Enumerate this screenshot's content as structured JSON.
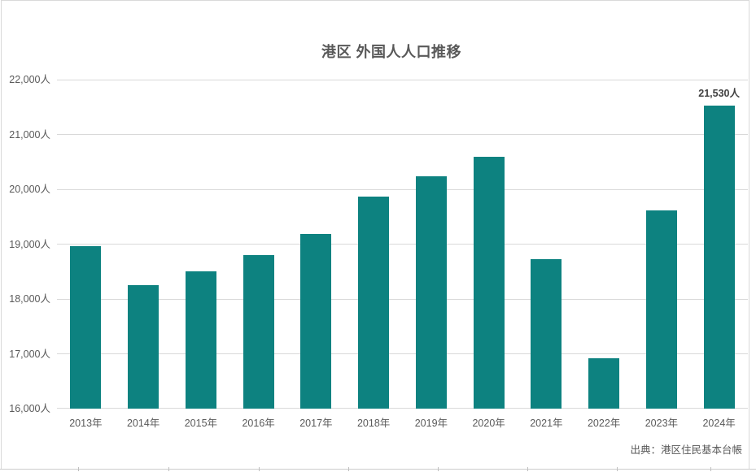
{
  "title": "港区 外国人人口推移",
  "source": "出典：港区住民基本台帳",
  "colors": {
    "bar_fill": "#0d8280",
    "gridline": "#d9d9d9",
    "axis_text": "#595959",
    "title_text": "#595959",
    "data_label_text": "#3f3f3f",
    "frame_border": "#d9d9d9"
  },
  "chart_data": {
    "type": "bar",
    "title": "港区 外国人人口推移",
    "xlabel": "",
    "ylabel": "",
    "categories": [
      "2013年",
      "2014年",
      "2015年",
      "2016年",
      "2017年",
      "2018年",
      "2019年",
      "2020年",
      "2021年",
      "2022年",
      "2023年",
      "2024年"
    ],
    "values": [
      18960,
      18250,
      18510,
      18800,
      19190,
      19870,
      20230,
      20600,
      18720,
      16920,
      19620,
      21530
    ],
    "ylim": [
      16000,
      22000
    ],
    "ytick_step": 1000,
    "ytick_labels": [
      "16,000人",
      "17,000人",
      "18,000人",
      "19,000人",
      "20,000人",
      "21,000人",
      "22,000人"
    ],
    "grid": true,
    "legend_position": "none",
    "data_labels": [
      {
        "category": "2024年",
        "text": "21,530人"
      }
    ]
  }
}
